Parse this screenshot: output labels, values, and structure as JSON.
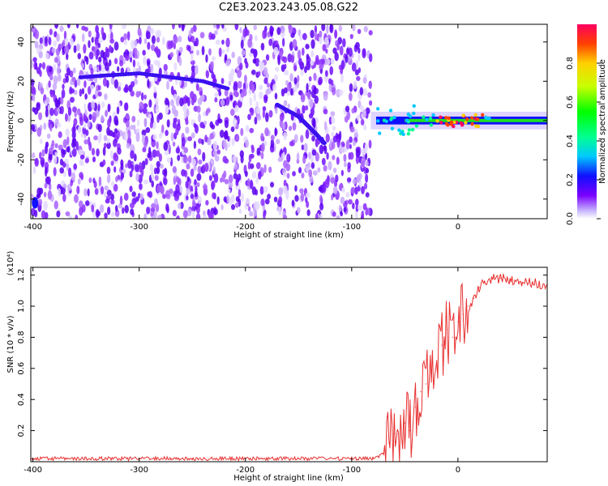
{
  "chart_data": [
    {
      "type": "heatmap",
      "title": "C2E3.2023.243.05.08.G22",
      "xlabel": "Height of straight line (km)",
      "ylabel": "Frequency (Hz)",
      "xlim": [
        -402,
        84
      ],
      "ylim": [
        -50,
        49
      ],
      "xticks": [
        -400,
        -300,
        -200,
        -100,
        0
      ],
      "yticks": [
        40,
        20,
        0,
        -20,
        -40
      ],
      "colorbar": {
        "label": "Normalized spectral amplitude",
        "range": [
          0.0,
          1.0
        ],
        "ticks": [
          "0.0",
          "0.2",
          "0.4",
          "0.6",
          "0.8"
        ],
        "colormap": "rainbow (purple to red)"
      },
      "features": {
        "noise_region_x": [
          -402,
          -82
        ],
        "carrier_line_frequency_hz": 0,
        "carrier_line_x": [
          -82,
          84
        ],
        "upper_drift_track": [
          [
            -355,
            22
          ],
          [
            -330,
            23
          ],
          [
            -300,
            24
          ],
          [
            -270,
            22
          ],
          [
            -240,
            20
          ],
          [
            -215,
            16
          ]
        ],
        "lower_drift_track": [
          [
            -170,
            8
          ],
          [
            -150,
            2
          ],
          [
            -135,
            -6
          ],
          [
            -125,
            -12
          ]
        ]
      }
    },
    {
      "type": "line",
      "xlabel": "Height of straight line (km)",
      "ylabel": "SNR (10 * v/v)",
      "y_multiplier": "(x10⁴)",
      "xlim": [
        -402,
        84
      ],
      "ylim": [
        0,
        1.25
      ],
      "xticks": [
        -400,
        -300,
        -200,
        -100,
        0
      ],
      "yticks": [
        0.2,
        0.4,
        0.6,
        0.8,
        1.0,
        1.2
      ],
      "color": "#e83030",
      "series": [
        {
          "x": [
            -402,
            -350,
            -300,
            -250,
            -200,
            -150,
            -100,
            -80,
            -70,
            -65,
            -60,
            -55,
            -50,
            -45,
            -40,
            -35,
            -30,
            -25,
            -20,
            -15,
            -10,
            -5,
            0,
            5,
            10,
            15,
            20,
            25,
            30,
            40,
            50,
            60,
            70,
            84
          ],
          "values": [
            0.02,
            0.02,
            0.02,
            0.02,
            0.02,
            0.02,
            0.02,
            0.02,
            0.05,
            0.12,
            0.18,
            0.1,
            0.25,
            0.2,
            0.35,
            0.45,
            0.5,
            0.55,
            0.65,
            0.75,
            0.85,
            0.8,
            0.9,
            0.95,
            1.0,
            1.05,
            1.12,
            1.15,
            1.18,
            1.18,
            1.17,
            1.15,
            1.15,
            1.14
          ]
        }
      ]
    }
  ]
}
